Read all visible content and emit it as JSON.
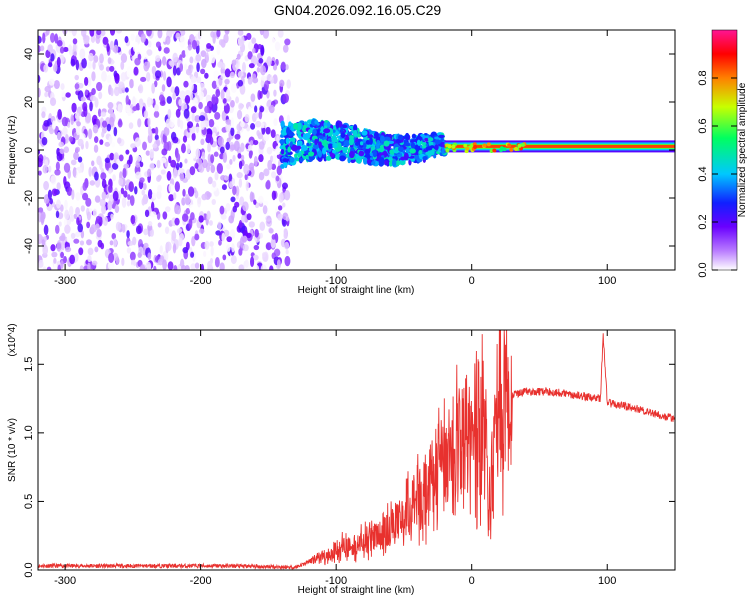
{
  "title": "GN04.2026.092.16.05.C29",
  "chart_data": [
    {
      "type": "heatmap",
      "xlabel": "Height of straight line (km)",
      "ylabel": "Frequency (Hz)",
      "xlim": [
        -320,
        150
      ],
      "ylim": [
        -50,
        50
      ],
      "xticks": [
        -300,
        -200,
        -100,
        0,
        100
      ],
      "yticks": [
        -40,
        -20,
        0,
        20,
        40
      ],
      "colorbar": {
        "label": "Normalized spectral amplitude",
        "range": [
          0.0,
          1.0
        ],
        "ticks": [
          0.0,
          0.2,
          0.4,
          0.6,
          0.8
        ],
        "colormap": "white-purple-blue-cyan-green-yellow-red-pink"
      },
      "regions": [
        {
          "description": "broadband noise",
          "x": [
            -320,
            -135
          ],
          "freq": [
            -50,
            50
          ],
          "amplitude": 0.1
        },
        {
          "description": "signal band",
          "x": [
            -140,
            -20
          ],
          "freq": [
            -8,
            10
          ],
          "amplitude": 0.35
        },
        {
          "description": "narrow carrier line",
          "x": [
            -20,
            150
          ],
          "freq": [
            0,
            3
          ],
          "amplitude": 0.9
        }
      ]
    },
    {
      "type": "line",
      "xlabel": "Height of straight line (km)",
      "ylabel": "SNR (10 * v/v)",
      "y_multiplier": "(x10^4)",
      "xlim": [
        -320,
        150
      ],
      "ylim": [
        0.0,
        1.75
      ],
      "xticks": [
        -300,
        -200,
        -100,
        0,
        100
      ],
      "yticks": [
        0.0,
        0.5,
        1.0,
        1.5
      ],
      "color": "#e8312e",
      "series": [
        {
          "x": [
            -320,
            -250,
            -180,
            -130,
            -115,
            -100,
            -80,
            -60,
            -40,
            -20,
            -10,
            0,
            10,
            12,
            20,
            30,
            40,
            60,
            80,
            95,
            97,
            100,
            120,
            150
          ],
          "y": [
            0.03,
            0.03,
            0.03,
            0.02,
            0.08,
            0.15,
            0.2,
            0.3,
            0.5,
            0.75,
            0.95,
            1.0,
            1.15,
            0.4,
            1.2,
            1.28,
            1.3,
            1.3,
            1.27,
            1.25,
            1.72,
            1.22,
            1.18,
            1.1
          ]
        }
      ]
    }
  ]
}
